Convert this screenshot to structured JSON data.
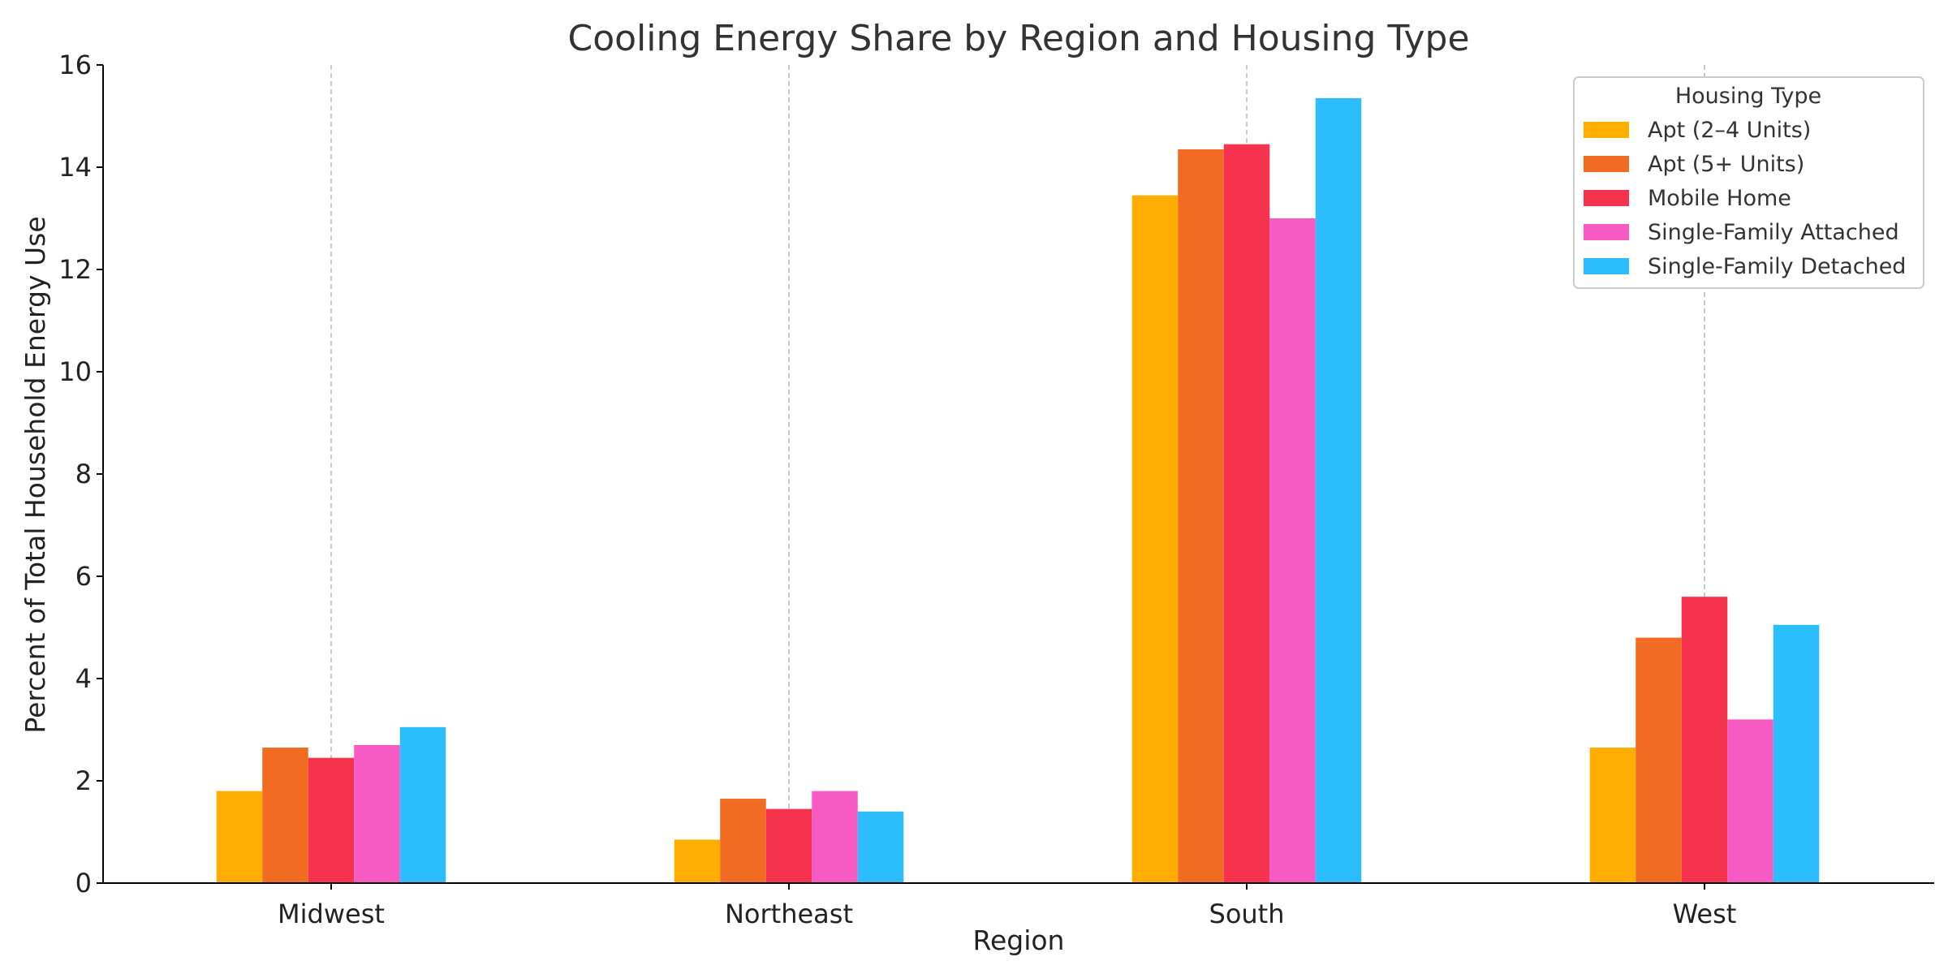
{
  "chart_data": {
    "type": "bar",
    "title": "Cooling Energy Share by Region and Housing Type",
    "xlabel": "Region",
    "ylabel": "Percent of Total Household Energy Use",
    "categories": [
      "Midwest",
      "Northeast",
      "South",
      "West"
    ],
    "ylim": [
      0,
      16
    ],
    "yticks": [
      0,
      2,
      4,
      6,
      8,
      10,
      12,
      14,
      16
    ],
    "legend_title": "Housing Type",
    "legend_position": "top-right",
    "grid": "vertical dashed lines at category centers",
    "series": [
      {
        "name": "Apt (2–4 Units)",
        "color": "#FFAE00",
        "values": [
          1.8,
          0.85,
          13.45,
          2.65
        ]
      },
      {
        "name": "Apt (5+ Units)",
        "color": "#F26B22",
        "values": [
          2.65,
          1.65,
          14.35,
          4.8
        ]
      },
      {
        "name": "Mobile Home",
        "color": "#F5334F",
        "values": [
          2.45,
          1.45,
          14.45,
          5.6
        ]
      },
      {
        "name": "Single-Family Attached",
        "color": "#F75AC2",
        "values": [
          2.7,
          1.8,
          13.0,
          3.2
        ]
      },
      {
        "name": "Single-Family Detached",
        "color": "#2BBDFC",
        "values": [
          3.05,
          1.4,
          15.35,
          5.05
        ]
      }
    ]
  }
}
